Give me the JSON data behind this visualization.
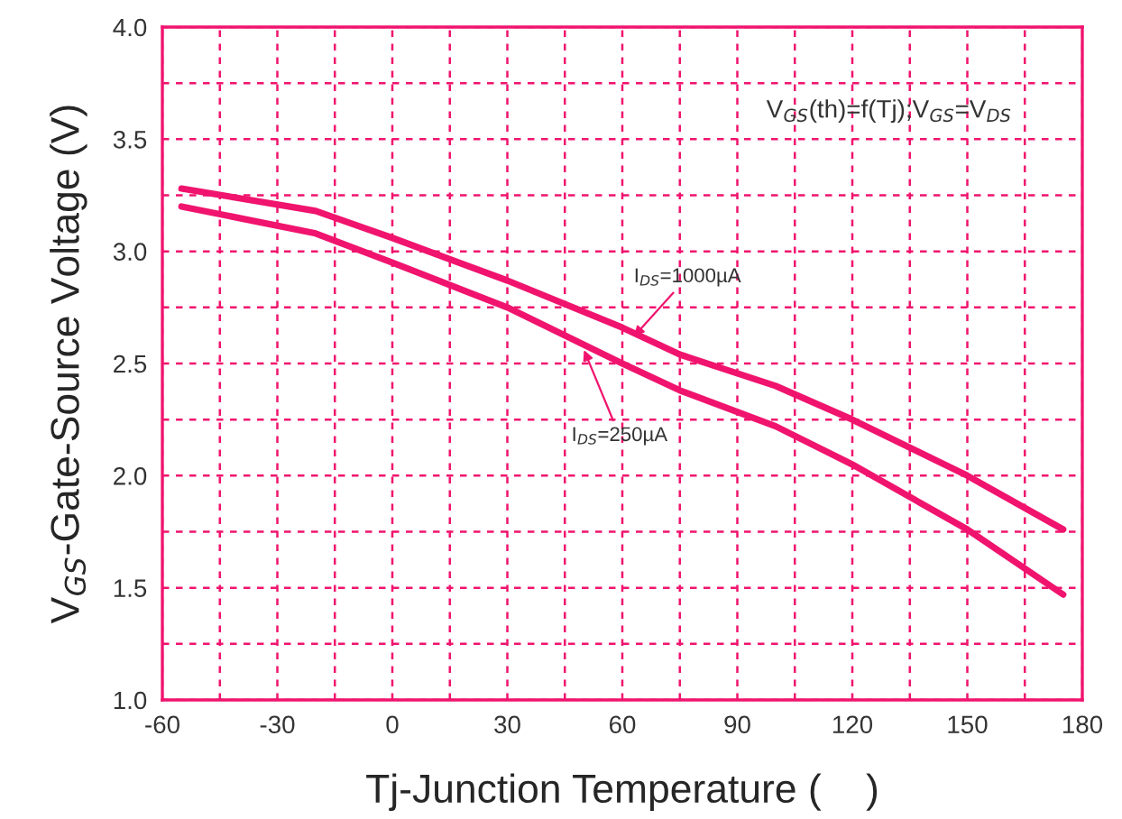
{
  "chart_data": {
    "type": "line",
    "xlabel": "Tj-Junction Temperature (    )",
    "ylabel": "V$_{GS}$-Gate-Source Voltage (V)",
    "x": [
      -55,
      -20,
      0,
      30,
      60,
      75,
      100,
      120,
      150,
      175
    ],
    "series": [
      {
        "color": "#f0146e",
        "values": [
          3.28,
          3.18,
          3.06,
          2.87,
          2.66,
          2.54,
          2.4,
          2.25,
          2.0,
          1.76
        ]
      },
      {
        "color": "#f0146e",
        "values": [
          3.2,
          3.08,
          2.95,
          2.75,
          2.5,
          2.38,
          2.22,
          2.05,
          1.76,
          1.47
        ]
      }
    ],
    "annotations": [
      "V$_{GS}$(th)=f(Tj);V$_{GS}$=V$_{DS}$",
      {
        "text": "I$_{DS}$=1000µA",
        "x": 63,
        "y": 2.62
      },
      {
        "text": "I$_{DS}$=250µA",
        "x": 50,
        "y": 2.56
      }
    ],
    "xlim": [
      -60,
      180
    ],
    "xticks": [
      -60,
      {
        "value": -45,
        "label": null
      },
      -30,
      {
        "value": -15,
        "label": null
      },
      0,
      {
        "value": 15,
        "label": null
      },
      30,
      {
        "value": 45,
        "label": null
      },
      60,
      {
        "value": 75,
        "label": null
      },
      90,
      {
        "value": 105,
        "label": null
      },
      120,
      {
        "value": 135,
        "label": null
      },
      150,
      {
        "value": 165,
        "label": null
      },
      180
    ],
    "ylim": [
      1.0,
      4.0
    ],
    "yticks": [
      {
        "value": 1.0,
        "label": "1.0"
      },
      {
        "value": 1.25,
        "label": null
      },
      {
        "value": 1.5,
        "label": "1.5"
      },
      {
        "value": 1.75,
        "label": null
      },
      {
        "value": 2.0,
        "label": "2.0"
      },
      {
        "value": 2.25,
        "label": null
      },
      {
        "value": 2.5,
        "label": "2.5"
      },
      {
        "value": 2.75,
        "label": null
      },
      {
        "value": 3.0,
        "label": "3.0"
      },
      {
        "value": 3.25,
        "label": null
      },
      {
        "value": 3.5,
        "label": "3.5"
      },
      {
        "value": 3.75,
        "label": null
      },
      {
        "value": 4.0,
        "label": "4.0"
      }
    ],
    "grid": true,
    "marker": "none",
    "line_style": "solid",
    "legend": false
  }
}
